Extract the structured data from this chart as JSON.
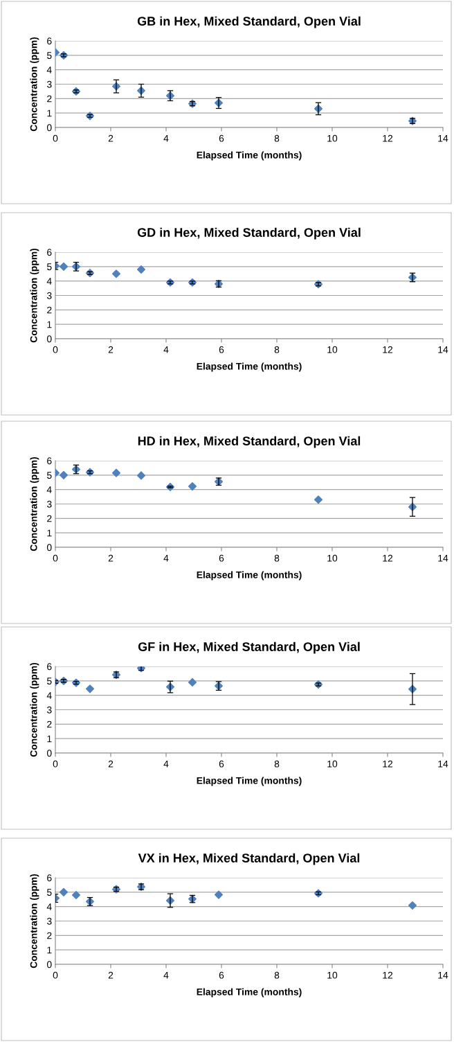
{
  "chart_data": [
    {
      "type": "scatter",
      "title": "GB in Hex, Mixed Standard, Open Vial",
      "xlabel": "Elapsed Time (months)",
      "ylabel": "Concentration (ppm)",
      "marker": "diamond",
      "grid": "y",
      "xlim": [
        0,
        14
      ],
      "xticks": [
        0,
        2,
        4,
        6,
        8,
        10,
        12,
        14
      ],
      "ylim": [
        0,
        6
      ],
      "yticks": [
        0,
        1,
        2,
        3,
        4,
        5,
        6
      ],
      "series": [
        {
          "color": "#4f81bd",
          "x": [
            0,
            0.3,
            0.75,
            1.25,
            2.2,
            3.1,
            4.15,
            4.95,
            5.9,
            9.5,
            12.9
          ],
          "values": [
            5.2,
            5.0,
            2.5,
            0.8,
            2.85,
            2.55,
            2.2,
            1.65,
            1.7,
            1.3,
            0.45
          ],
          "errors": [
            null,
            0.1,
            0.1,
            0.1,
            0.45,
            0.45,
            0.35,
            0.15,
            0.38,
            0.42,
            0.18
          ]
        }
      ]
    },
    {
      "type": "scatter",
      "title": "GD in Hex, Mixed Standard, Open Vial",
      "xlabel": "Elapsed Time (months)",
      "ylabel": "Concentration (ppm)",
      "marker": "diamond",
      "grid": "y",
      "xlim": [
        0,
        14
      ],
      "xticks": [
        0,
        2,
        4,
        6,
        8,
        10,
        12,
        14
      ],
      "ylim": [
        0,
        6
      ],
      "yticks": [
        0,
        1,
        2,
        3,
        4,
        5,
        6
      ],
      "series": [
        {
          "color": "#4f81bd",
          "x": [
            0,
            0.3,
            0.75,
            1.25,
            2.2,
            3.1,
            4.15,
            4.95,
            5.9,
            9.5,
            12.9
          ],
          "values": [
            5.05,
            5.0,
            5.0,
            4.55,
            4.5,
            4.8,
            3.9,
            3.9,
            3.8,
            3.78,
            4.25
          ],
          "errors": [
            0.25,
            null,
            0.3,
            0.1,
            null,
            null,
            0.1,
            0.1,
            0.22,
            0.12,
            0.3
          ]
        }
      ]
    },
    {
      "type": "scatter",
      "title": "HD in Hex, Mixed Standard, Open Vial",
      "xlabel": "Elapsed Time (months)",
      "ylabel": "Concentration (ppm)",
      "marker": "diamond",
      "grid": "y",
      "xlim": [
        0,
        14
      ],
      "xticks": [
        0,
        2,
        4,
        6,
        8,
        10,
        12,
        14
      ],
      "ylim": [
        0,
        6
      ],
      "yticks": [
        0,
        1,
        2,
        3,
        4,
        5,
        6
      ],
      "series": [
        {
          "color": "#4f81bd",
          "x": [
            0,
            0.3,
            0.75,
            1.25,
            2.2,
            3.1,
            4.15,
            4.95,
            5.9,
            9.5,
            12.9
          ],
          "values": [
            5.15,
            5.0,
            5.4,
            5.2,
            5.15,
            4.97,
            4.18,
            4.22,
            4.55,
            3.3,
            2.8
          ],
          "errors": [
            null,
            null,
            0.3,
            0.1,
            null,
            null,
            0.05,
            null,
            0.25,
            null,
            0.65
          ]
        }
      ]
    },
    {
      "type": "scatter",
      "title": "GF in Hex, Mixed Standard, Open Vial",
      "xlabel": "Elapsed Time (months)",
      "ylabel": "Concentration (ppm)",
      "marker": "diamond",
      "grid": "y",
      "xlim": [
        0,
        14
      ],
      "xticks": [
        0,
        2,
        4,
        6,
        8,
        10,
        12,
        14
      ],
      "ylim": [
        0,
        6
      ],
      "yticks": [
        0,
        1,
        2,
        3,
        4,
        5,
        6
      ],
      "series": [
        {
          "color": "#4f81bd",
          "x": [
            0,
            0.3,
            0.75,
            1.25,
            2.2,
            3.1,
            4.15,
            4.95,
            5.9,
            9.5,
            12.9
          ],
          "values": [
            4.93,
            5.0,
            4.87,
            4.45,
            5.42,
            5.88,
            4.58,
            4.9,
            4.65,
            4.75,
            4.43
          ],
          "errors": [
            0.1,
            0.1,
            0.1,
            null,
            0.2,
            0.15,
            0.4,
            null,
            0.3,
            0.1,
            1.07
          ]
        }
      ]
    },
    {
      "type": "scatter",
      "title": "VX in Hex, Mixed Standard, Open Vial",
      "xlabel": "Elapsed Time (months)",
      "ylabel": "Concentration (ppm)",
      "marker": "diamond",
      "grid": "y",
      "xlim": [
        0,
        14
      ],
      "xticks": [
        0,
        2,
        4,
        6,
        8,
        10,
        12,
        14
      ],
      "ylim": [
        0,
        6
      ],
      "yticks": [
        0,
        1,
        2,
        3,
        4,
        5,
        6
      ],
      "series": [
        {
          "color": "#4f81bd",
          "x": [
            0,
            0.3,
            0.75,
            1.25,
            2.2,
            3.1,
            4.15,
            4.95,
            5.9,
            9.5,
            12.9
          ],
          "values": [
            4.58,
            5.0,
            4.8,
            4.35,
            5.2,
            5.37,
            4.42,
            4.53,
            4.82,
            4.92,
            4.08
          ],
          "errors": [
            0.28,
            null,
            null,
            0.28,
            0.15,
            0.2,
            0.47,
            0.25,
            null,
            0.1,
            null
          ]
        }
      ]
    }
  ]
}
